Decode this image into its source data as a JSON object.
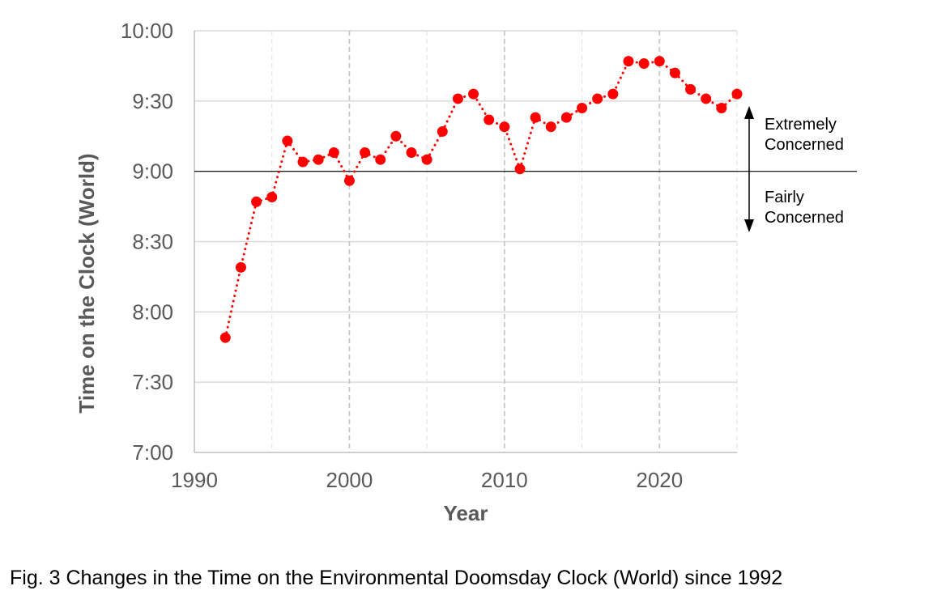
{
  "chart_data": {
    "type": "scatter",
    "connected": true,
    "line_style": "dotted",
    "marker_color": "#ff0000",
    "title": "",
    "xlabel": "Year",
    "ylabel": "Time on the Clock (World)",
    "x_ticks": [
      1990,
      2000,
      2010,
      2020
    ],
    "xlim": [
      1990,
      2025
    ],
    "y_ticks": [
      {
        "value": 420,
        "label": "7:00"
      },
      {
        "value": 450,
        "label": "7:30"
      },
      {
        "value": 480,
        "label": "8:00"
      },
      {
        "value": 510,
        "label": "8:30"
      },
      {
        "value": 540,
        "label": "9:00"
      },
      {
        "value": 570,
        "label": "9:30"
      },
      {
        "value": 600,
        "label": "10:00"
      }
    ],
    "ylim": [
      "7:00",
      "10:00"
    ],
    "grid": true,
    "reference_line": "9:00",
    "series": [
      {
        "points": [
          {
            "x": 1992,
            "y": "7:49"
          },
          {
            "x": 1993,
            "y": "8:19"
          },
          {
            "x": 1994,
            "y": "8:47"
          },
          {
            "x": 1995,
            "y": "8:49"
          },
          {
            "x": 1996,
            "y": "9:13"
          },
          {
            "x": 1997,
            "y": "9:04"
          },
          {
            "x": 1998,
            "y": "9:05"
          },
          {
            "x": 1999,
            "y": "9:08"
          },
          {
            "x": 2000,
            "y": "8:56"
          },
          {
            "x": 2001,
            "y": "9:08"
          },
          {
            "x": 2002,
            "y": "9:05"
          },
          {
            "x": 2003,
            "y": "9:15"
          },
          {
            "x": 2004,
            "y": "9:08"
          },
          {
            "x": 2005,
            "y": "9:05"
          },
          {
            "x": 2006,
            "y": "9:17"
          },
          {
            "x": 2007,
            "y": "9:31"
          },
          {
            "x": 2008,
            "y": "9:33"
          },
          {
            "x": 2009,
            "y": "9:22"
          },
          {
            "x": 2010,
            "y": "9:19"
          },
          {
            "x": 2011,
            "y": "9:01"
          },
          {
            "x": 2012,
            "y": "9:23"
          },
          {
            "x": 2013,
            "y": "9:19"
          },
          {
            "x": 2014,
            "y": "9:23"
          },
          {
            "x": 2015,
            "y": "9:27"
          },
          {
            "x": 2016,
            "y": "9:31"
          },
          {
            "x": 2017,
            "y": "9:33"
          },
          {
            "x": 2018,
            "y": "9:47"
          },
          {
            "x": 2019,
            "y": "9:46"
          },
          {
            "x": 2020,
            "y": "9:47"
          },
          {
            "x": 2021,
            "y": "9:42"
          },
          {
            "x": 2022,
            "y": "9:35"
          },
          {
            "x": 2023,
            "y": "9:31"
          },
          {
            "x": 2024,
            "y": "9:27"
          },
          {
            "x": 2025,
            "y": "9:33"
          }
        ]
      }
    ],
    "annotations": {
      "upper": [
        "Extremely",
        "Concerned"
      ],
      "lower": [
        "Fairly",
        "Concerned"
      ]
    }
  },
  "caption": "Fig. 3 Changes in the Time on the Environmental Doomsday Clock (World) since 1992"
}
